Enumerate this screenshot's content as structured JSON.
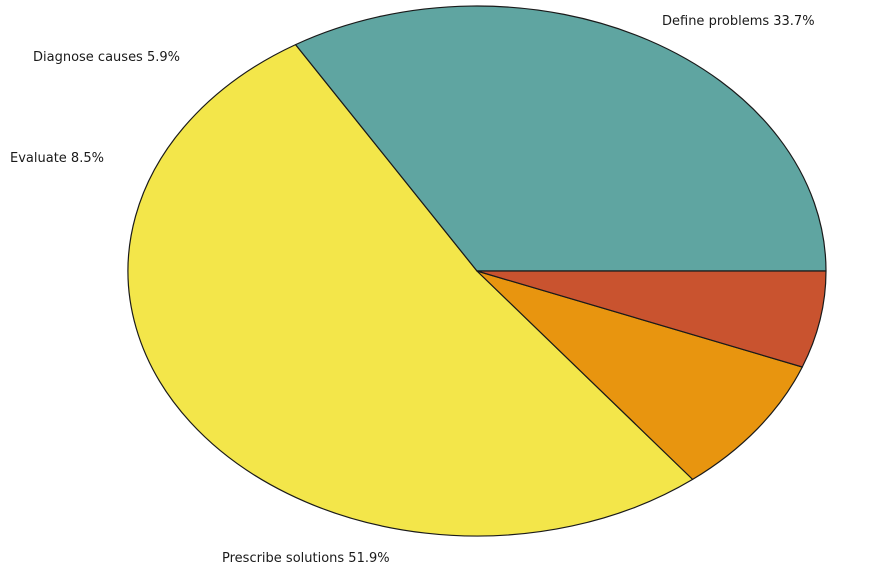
{
  "chart_data": {
    "type": "pie",
    "title": "",
    "categories": [
      "Define problems",
      "Prescribe solutions",
      "Evaluate",
      "Diagnose causes"
    ],
    "values": [
      33.7,
      51.9,
      8.5,
      5.9
    ],
    "unit": "%",
    "labels": [
      "Define problems 33.7%",
      "Prescribe solutions 51.9%",
      "Evaluate  8.5%",
      "Diagnose causes 5.9%"
    ],
    "colors": [
      "#5fa5a1",
      "#f3e64a",
      "#e8950f",
      "#c9532f"
    ],
    "start": "3 o'clock",
    "direction": "counterclockwise",
    "legend": "none"
  }
}
